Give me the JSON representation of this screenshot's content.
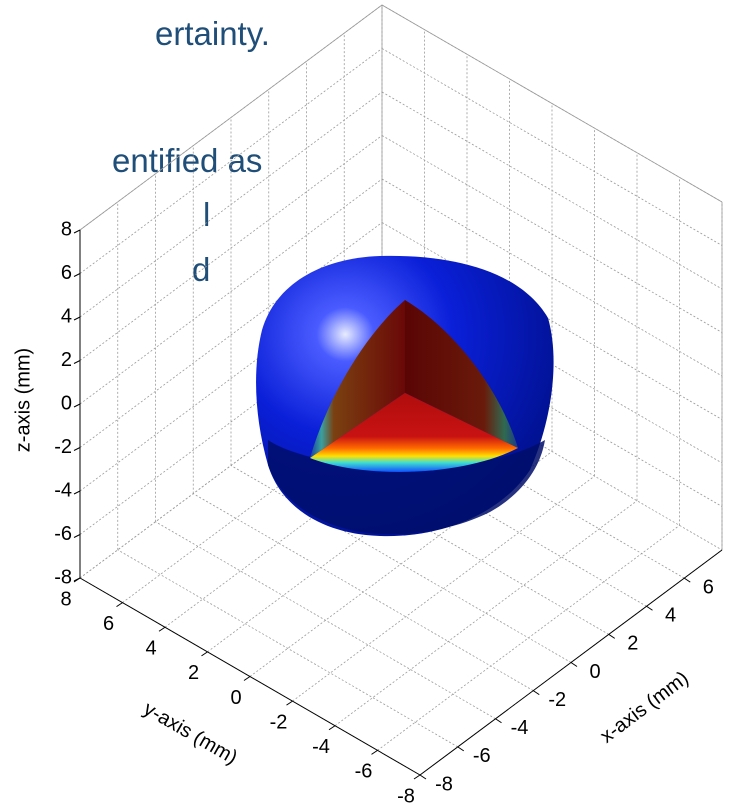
{
  "slide_text": [
    "ertainty.",
    "entified as",
    "l",
    "d"
  ],
  "chart_data": {
    "type": "surface3d",
    "xlabel": "x-axis (mm)",
    "ylabel": "y-axis (mm)",
    "zlabel": "z-axis (mm)",
    "xlim": [
      -8,
      8
    ],
    "ylim": [
      -8,
      8
    ],
    "zlim": [
      -8,
      8
    ],
    "xticks": [
      -8,
      -6,
      -4,
      -2,
      0,
      2,
      4,
      6
    ],
    "yticks": [
      -8,
      -6,
      -4,
      -2,
      0,
      2,
      4,
      6,
      8
    ],
    "zticks": [
      -8,
      -6,
      -4,
      -2,
      0,
      2,
      4,
      6,
      8
    ],
    "grid": true
  }
}
